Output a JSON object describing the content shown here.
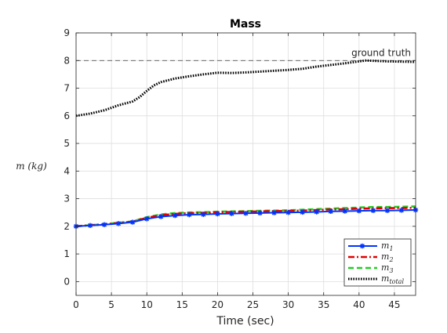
{
  "chart_data": {
    "type": "line",
    "title": "Mass",
    "xlabel": "Time (sec)",
    "ylabel": "m (kg)",
    "xlim": [
      0,
      48
    ],
    "ylim": [
      -0.5,
      9
    ],
    "xticks": [
      0,
      5,
      10,
      15,
      20,
      25,
      30,
      35,
      40,
      45
    ],
    "yticks": [
      0,
      1,
      2,
      3,
      4,
      5,
      6,
      7,
      8,
      9
    ],
    "grid": true,
    "legend_position": "bottom-right",
    "reference_line": {
      "y": 8,
      "label": "ground truth",
      "color": "#555555"
    },
    "series": [
      {
        "name": "m_1",
        "legend_base": "m",
        "legend_sub": "1",
        "color": "#0033ff",
        "style": "solid-marker",
        "x": [
          0,
          2,
          4,
          6,
          8,
          10,
          12,
          14,
          16,
          18,
          20,
          22,
          24,
          26,
          28,
          30,
          32,
          34,
          36,
          38,
          40,
          42,
          44,
          46,
          48
        ],
        "y": [
          2.0,
          2.03,
          2.06,
          2.1,
          2.15,
          2.27,
          2.35,
          2.39,
          2.42,
          2.43,
          2.45,
          2.46,
          2.47,
          2.48,
          2.49,
          2.5,
          2.51,
          2.52,
          2.54,
          2.55,
          2.56,
          2.57,
          2.57,
          2.58,
          2.59
        ]
      },
      {
        "name": "m_2",
        "legend_base": "m",
        "legend_sub": "2",
        "color": "#e00000",
        "style": "dashdot",
        "x": [
          0,
          2,
          4,
          6,
          8,
          10,
          12,
          14,
          16,
          18,
          20,
          22,
          24,
          26,
          28,
          30,
          32,
          34,
          36,
          38,
          40,
          42,
          44,
          46,
          48
        ],
        "y": [
          2.0,
          2.04,
          2.07,
          2.12,
          2.17,
          2.31,
          2.4,
          2.45,
          2.48,
          2.49,
          2.51,
          2.52,
          2.53,
          2.54,
          2.55,
          2.56,
          2.57,
          2.59,
          2.61,
          2.62,
          2.64,
          2.65,
          2.66,
          2.66,
          2.67
        ]
      },
      {
        "name": "m_3",
        "legend_base": "m",
        "legend_sub": "3",
        "color": "#22cc22",
        "style": "dashed",
        "x": [
          0,
          2,
          4,
          6,
          8,
          10,
          12,
          14,
          16,
          18,
          20,
          22,
          24,
          26,
          28,
          30,
          32,
          34,
          36,
          38,
          40,
          42,
          44,
          46,
          48
        ],
        "y": [
          2.0,
          2.04,
          2.08,
          2.13,
          2.18,
          2.33,
          2.43,
          2.48,
          2.5,
          2.51,
          2.53,
          2.54,
          2.55,
          2.56,
          2.57,
          2.58,
          2.6,
          2.62,
          2.64,
          2.66,
          2.68,
          2.7,
          2.7,
          2.71,
          2.72
        ]
      },
      {
        "name": "m_total",
        "legend_base": "m",
        "legend_sub": "total",
        "color": "#000000",
        "style": "dotted",
        "x": [
          0,
          2,
          4,
          6,
          8,
          9,
          10,
          11,
          12,
          14,
          16,
          18,
          20,
          22,
          24,
          26,
          28,
          30,
          32,
          34,
          36,
          38,
          40,
          41,
          42,
          44,
          46,
          48
        ],
        "y": [
          6.0,
          6.08,
          6.2,
          6.38,
          6.52,
          6.68,
          6.9,
          7.1,
          7.22,
          7.35,
          7.43,
          7.5,
          7.56,
          7.55,
          7.57,
          7.6,
          7.63,
          7.66,
          7.7,
          7.78,
          7.84,
          7.9,
          7.97,
          8.0,
          7.99,
          7.97,
          7.96,
          7.95
        ]
      }
    ]
  }
}
